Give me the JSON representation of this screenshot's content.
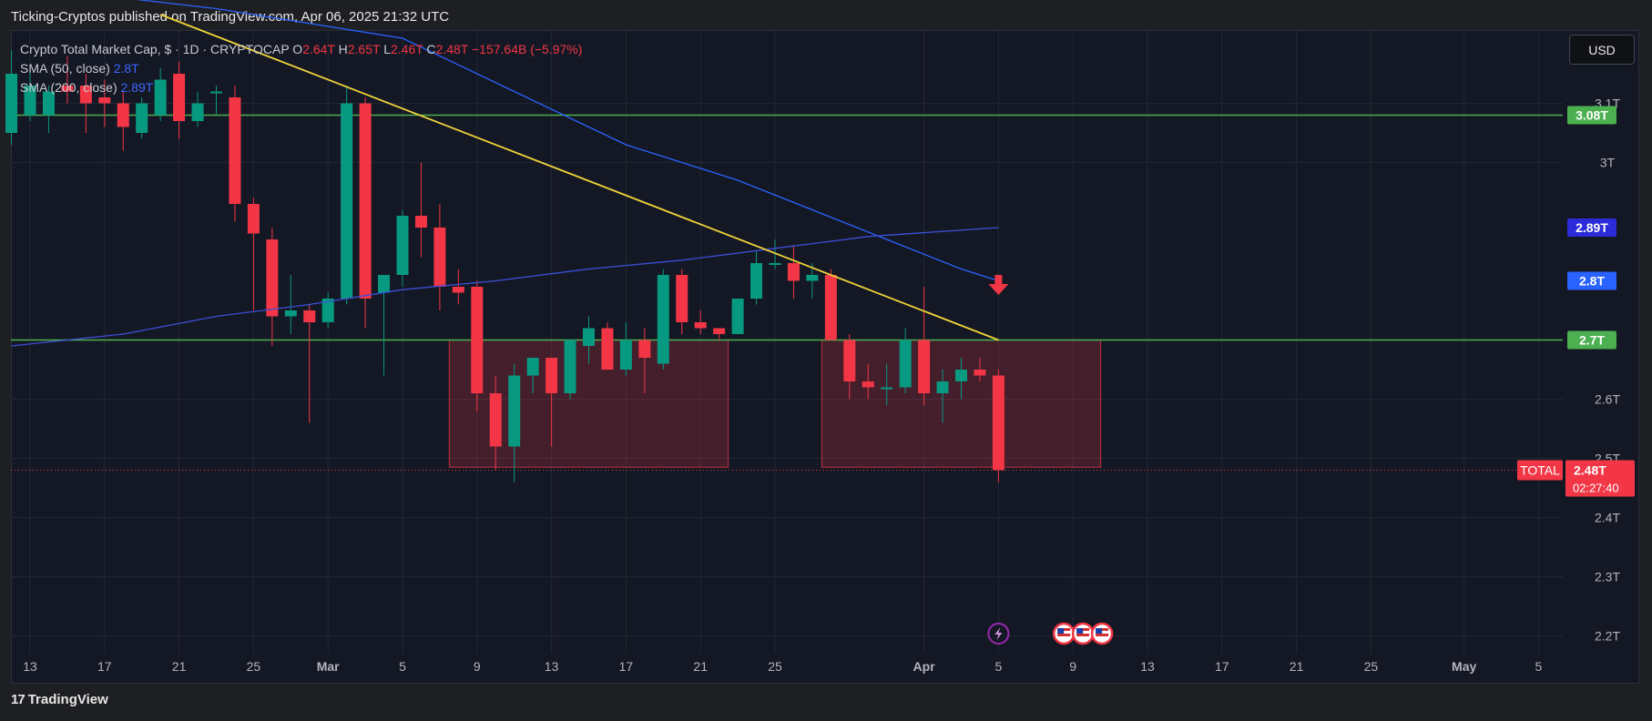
{
  "header": {
    "published_by": "Ticking-Cryptos published on TradingView.com, Apr 06, 2025 21:32 UTC"
  },
  "currency_button": "USD",
  "legend": {
    "symbol": "Crypto Total Market Cap, $ · 1D · CRYPTOCAP",
    "o_label": "O",
    "o_value": "2.64T",
    "h_label": "H",
    "h_value": "2.65T",
    "l_label": "L",
    "l_value": "2.46T",
    "c_label": "C",
    "c_value": "2.48T",
    "change": "−157.64B (−5.97%)",
    "sma50_label": "SMA (50, close)",
    "sma50_value": "2.8T",
    "sma200_label": "SMA (200, close)",
    "sma200_value": "2.89T"
  },
  "footer": {
    "brand": "TradingView",
    "logo_text": "17"
  },
  "colors": {
    "up": "#089981",
    "down": "#f23645",
    "sma50": "#2962ff",
    "sma200": "#3c4fd9",
    "trendline": "#f0d43a",
    "support": "#4caf50",
    "zone": "#f23645"
  },
  "chart_data": {
    "type": "candlestick",
    "title": "Crypto Total Market Cap, $ · 1D · CRYPTOCAP",
    "ylim": [
      2.17,
      3.18
    ],
    "y_ticks": [
      "2.2T",
      "2.3T",
      "2.4T",
      "2.5T",
      "2.6T",
      "3T",
      "3.1T"
    ],
    "y_tick_values": [
      2.2,
      2.3,
      2.4,
      2.5,
      2.6,
      3.0,
      3.1
    ],
    "x_ticks": [
      {
        "label": "13",
        "day": 0
      },
      {
        "label": "17",
        "day": 4
      },
      {
        "label": "21",
        "day": 8
      },
      {
        "label": "25",
        "day": 12
      },
      {
        "label": "Mar",
        "day": 16
      },
      {
        "label": "5",
        "day": 20
      },
      {
        "label": "9",
        "day": 24
      },
      {
        "label": "13",
        "day": 28
      },
      {
        "label": "17",
        "day": 32
      },
      {
        "label": "21",
        "day": 36
      },
      {
        "label": "25",
        "day": 40
      },
      {
        "label": "Apr",
        "day": 48
      },
      {
        "label": "5",
        "day": 52
      },
      {
        "label": "9",
        "day": 56
      },
      {
        "label": "13",
        "day": 60
      },
      {
        "label": "17",
        "day": 64
      },
      {
        "label": "21",
        "day": 68
      },
      {
        "label": "25",
        "day": 72
      },
      {
        "label": "May",
        "day": 77
      },
      {
        "label": "5",
        "day": 81
      }
    ],
    "candles": [
      {
        "day": -1,
        "o": 3.05,
        "h": 3.19,
        "l": 3.03,
        "c": 3.15
      },
      {
        "day": 0,
        "o": 3.08,
        "h": 3.16,
        "l": 3.07,
        "c": 3.13
      },
      {
        "day": 1,
        "o": 3.08,
        "h": 3.13,
        "l": 3.05,
        "c": 3.12
      },
      {
        "day": 2,
        "o": 3.13,
        "h": 3.18,
        "l": 3.1,
        "c": 3.12
      },
      {
        "day": 3,
        "o": 3.13,
        "h": 3.15,
        "l": 3.05,
        "c": 3.1
      },
      {
        "day": 4,
        "o": 3.11,
        "h": 3.14,
        "l": 3.06,
        "c": 3.1
      },
      {
        "day": 5,
        "o": 3.1,
        "h": 3.12,
        "l": 3.02,
        "c": 3.06
      },
      {
        "day": 6,
        "o": 3.05,
        "h": 3.11,
        "l": 3.04,
        "c": 3.1
      },
      {
        "day": 7,
        "o": 3.08,
        "h": 3.16,
        "l": 3.07,
        "c": 3.14
      },
      {
        "day": 8,
        "o": 3.15,
        "h": 3.17,
        "l": 3.04,
        "c": 3.07
      },
      {
        "day": 9,
        "o": 3.07,
        "h": 3.12,
        "l": 3.06,
        "c": 3.1
      },
      {
        "day": 10,
        "o": 3.12,
        "h": 3.13,
        "l": 3.08,
        "c": 3.12
      },
      {
        "day": 11,
        "o": 3.11,
        "h": 3.13,
        "l": 2.9,
        "c": 2.93
      },
      {
        "day": 12,
        "o": 2.93,
        "h": 2.94,
        "l": 2.75,
        "c": 2.88
      },
      {
        "day": 13,
        "o": 2.87,
        "h": 2.89,
        "l": 2.69,
        "c": 2.74
      },
      {
        "day": 14,
        "o": 2.74,
        "h": 2.81,
        "l": 2.71,
        "c": 2.75
      },
      {
        "day": 15,
        "o": 2.75,
        "h": 2.76,
        "l": 2.56,
        "c": 2.73
      },
      {
        "day": 16,
        "o": 2.73,
        "h": 2.78,
        "l": 2.72,
        "c": 2.77
      },
      {
        "day": 17,
        "o": 2.77,
        "h": 3.13,
        "l": 2.76,
        "c": 3.1
      },
      {
        "day": 18,
        "o": 3.1,
        "h": 3.11,
        "l": 2.72,
        "c": 2.77
      },
      {
        "day": 19,
        "o": 2.78,
        "h": 2.81,
        "l": 2.64,
        "c": 2.81
      },
      {
        "day": 20,
        "o": 2.81,
        "h": 2.92,
        "l": 2.79,
        "c": 2.91
      },
      {
        "day": 21,
        "o": 2.91,
        "h": 3.0,
        "l": 2.84,
        "c": 2.89
      },
      {
        "day": 22,
        "o": 2.89,
        "h": 2.93,
        "l": 2.75,
        "c": 2.79
      },
      {
        "day": 23,
        "o": 2.79,
        "h": 2.82,
        "l": 2.76,
        "c": 2.78
      },
      {
        "day": 24,
        "o": 2.79,
        "h": 2.8,
        "l": 2.58,
        "c": 2.61
      },
      {
        "day": 25,
        "o": 2.61,
        "h": 2.64,
        "l": 2.48,
        "c": 2.52
      },
      {
        "day": 26,
        "o": 2.52,
        "h": 2.66,
        "l": 2.46,
        "c": 2.64
      },
      {
        "day": 27,
        "o": 2.64,
        "h": 2.67,
        "l": 2.61,
        "c": 2.67
      },
      {
        "day": 28,
        "o": 2.67,
        "h": 2.67,
        "l": 2.52,
        "c": 2.61
      },
      {
        "day": 29,
        "o": 2.61,
        "h": 2.7,
        "l": 2.6,
        "c": 2.7
      },
      {
        "day": 30,
        "o": 2.69,
        "h": 2.74,
        "l": 2.66,
        "c": 2.72
      },
      {
        "day": 31,
        "o": 2.72,
        "h": 2.73,
        "l": 2.65,
        "c": 2.65
      },
      {
        "day": 32,
        "o": 2.65,
        "h": 2.73,
        "l": 2.64,
        "c": 2.7
      },
      {
        "day": 33,
        "o": 2.7,
        "h": 2.72,
        "l": 2.61,
        "c": 2.67
      },
      {
        "day": 34,
        "o": 2.66,
        "h": 2.82,
        "l": 2.65,
        "c": 2.81
      },
      {
        "day": 35,
        "o": 2.81,
        "h": 2.82,
        "l": 2.71,
        "c": 2.73
      },
      {
        "day": 36,
        "o": 2.73,
        "h": 2.75,
        "l": 2.71,
        "c": 2.72
      },
      {
        "day": 37,
        "o": 2.72,
        "h": 2.72,
        "l": 2.7,
        "c": 2.71
      },
      {
        "day": 38,
        "o": 2.71,
        "h": 2.77,
        "l": 2.71,
        "c": 2.77
      },
      {
        "day": 39,
        "o": 2.77,
        "h": 2.85,
        "l": 2.76,
        "c": 2.83
      },
      {
        "day": 40,
        "o": 2.83,
        "h": 2.87,
        "l": 2.82,
        "c": 2.83
      },
      {
        "day": 41,
        "o": 2.83,
        "h": 2.86,
        "l": 2.77,
        "c": 2.8
      },
      {
        "day": 42,
        "o": 2.8,
        "h": 2.83,
        "l": 2.77,
        "c": 2.81
      },
      {
        "day": 43,
        "o": 2.81,
        "h": 2.82,
        "l": 2.7,
        "c": 2.7
      },
      {
        "day": 44,
        "o": 2.7,
        "h": 2.71,
        "l": 2.6,
        "c": 2.63
      },
      {
        "day": 45,
        "o": 2.63,
        "h": 2.66,
        "l": 2.6,
        "c": 2.62
      },
      {
        "day": 46,
        "o": 2.62,
        "h": 2.66,
        "l": 2.59,
        "c": 2.62
      },
      {
        "day": 47,
        "o": 2.62,
        "h": 2.72,
        "l": 2.61,
        "c": 2.7
      },
      {
        "day": 48,
        "o": 2.7,
        "h": 2.79,
        "l": 2.59,
        "c": 2.61
      },
      {
        "day": 49,
        "o": 2.61,
        "h": 2.65,
        "l": 2.56,
        "c": 2.63
      },
      {
        "day": 50,
        "o": 2.63,
        "h": 2.67,
        "l": 2.6,
        "c": 2.65
      },
      {
        "day": 51,
        "o": 2.65,
        "h": 2.67,
        "l": 2.63,
        "c": 2.64
      },
      {
        "day": 52,
        "o": 2.64,
        "h": 2.65,
        "l": 2.46,
        "c": 2.48
      }
    ],
    "sma50": [
      {
        "day": -1,
        "v": 3.3
      },
      {
        "day": 10,
        "v": 3.26
      },
      {
        "day": 20,
        "v": 3.21
      },
      {
        "day": 26,
        "v": 3.12
      },
      {
        "day": 32,
        "v": 3.03
      },
      {
        "day": 38,
        "v": 2.97
      },
      {
        "day": 42,
        "v": 2.92
      },
      {
        "day": 46,
        "v": 2.87
      },
      {
        "day": 50,
        "v": 2.82
      },
      {
        "day": 52,
        "v": 2.8
      }
    ],
    "sma200": [
      {
        "day": -1,
        "v": 2.69
      },
      {
        "day": 5,
        "v": 2.71
      },
      {
        "day": 10,
        "v": 2.74
      },
      {
        "day": 15,
        "v": 2.76
      },
      {
        "day": 20,
        "v": 2.785
      },
      {
        "day": 25,
        "v": 2.8
      },
      {
        "day": 30,
        "v": 2.82
      },
      {
        "day": 35,
        "v": 2.835
      },
      {
        "day": 40,
        "v": 2.855
      },
      {
        "day": 45,
        "v": 2.875
      },
      {
        "day": 52,
        "v": 2.89
      }
    ],
    "trendline": {
      "from": {
        "day": 7,
        "v": 3.25
      },
      "to": {
        "day": 52,
        "v": 2.7
      }
    },
    "horizontal_lines": [
      {
        "v": 3.08,
        "label": "3.08T"
      },
      {
        "v": 2.7,
        "label": "2.7T"
      }
    ],
    "zones": [
      {
        "from_day": 23,
        "to_day": 37,
        "low": 2.485,
        "high": 2.7
      },
      {
        "from_day": 43,
        "to_day": 57,
        "low": 2.485,
        "high": 2.7
      }
    ],
    "price_labels": [
      {
        "v": 3.08,
        "text": "3.08T",
        "color": "#4caf50"
      },
      {
        "v": 2.89,
        "text": "2.89T",
        "color": "#2b2bd9"
      },
      {
        "v": 2.8,
        "text": "2.8T",
        "color": "#2962ff"
      },
      {
        "v": 2.7,
        "text": "2.7T",
        "color": "#4caf50"
      }
    ],
    "current_price": {
      "v": 2.48,
      "text": "2.48T",
      "countdown": "02:27:40",
      "tag": "TOTAL"
    },
    "arrow_day": 52
  }
}
